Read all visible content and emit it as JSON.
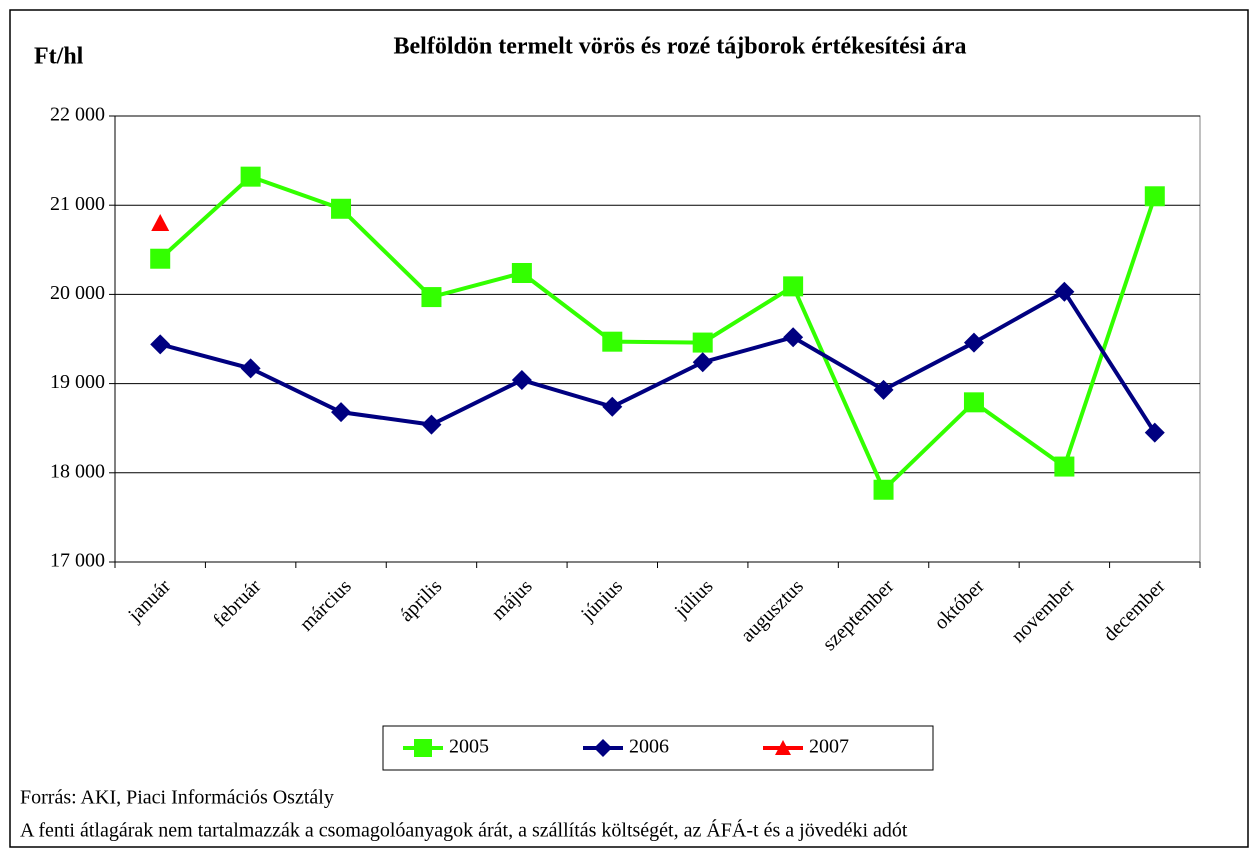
{
  "chart_data": {
    "type": "line",
    "title": "Belföldön termelt vörös és rozé tájborok értékesítési ára",
    "y_label": "Ft/hl",
    "categories": [
      "január",
      "február",
      "március",
      "április",
      "május",
      "június",
      "július",
      "augusztus",
      "szeptember",
      "október",
      "november",
      "december"
    ],
    "series": [
      {
        "name": "2005",
        "color": "#33ff00",
        "marker": "square",
        "values": [
          20400,
          21320,
          20960,
          19970,
          20240,
          19470,
          19460,
          20090,
          17810,
          18790,
          18070,
          21100
        ]
      },
      {
        "name": "2006",
        "color": "#000080",
        "marker": "diamond",
        "values": [
          19440,
          19170,
          18680,
          18540,
          19040,
          18740,
          19240,
          19520,
          18930,
          19460,
          20030,
          18450
        ]
      },
      {
        "name": "2007",
        "color": "#ff0000",
        "marker": "triangle",
        "values": [
          20800,
          null,
          null,
          null,
          null,
          null,
          null,
          null,
          null,
          null,
          null,
          null
        ]
      }
    ],
    "ylim": [
      17000,
      22000
    ],
    "yticks": [
      {
        "value": 17000,
        "label": "17 000"
      },
      {
        "value": 18000,
        "label": "18 000"
      },
      {
        "value": 19000,
        "label": "19 000"
      },
      {
        "value": 20000,
        "label": "20 000"
      },
      {
        "value": 21000,
        "label": "21 000"
      },
      {
        "value": 22000,
        "label": "22 000"
      }
    ],
    "grid": true,
    "legend": "bottom",
    "notes": [
      "Forrás: AKI, Piaci Információs Osztály",
      "A fenti átlagárak nem tartalmazzák a csomagolóanyagok árát, a szállítás költségét, az ÁFÁ-t és a jövedéki adót"
    ]
  }
}
